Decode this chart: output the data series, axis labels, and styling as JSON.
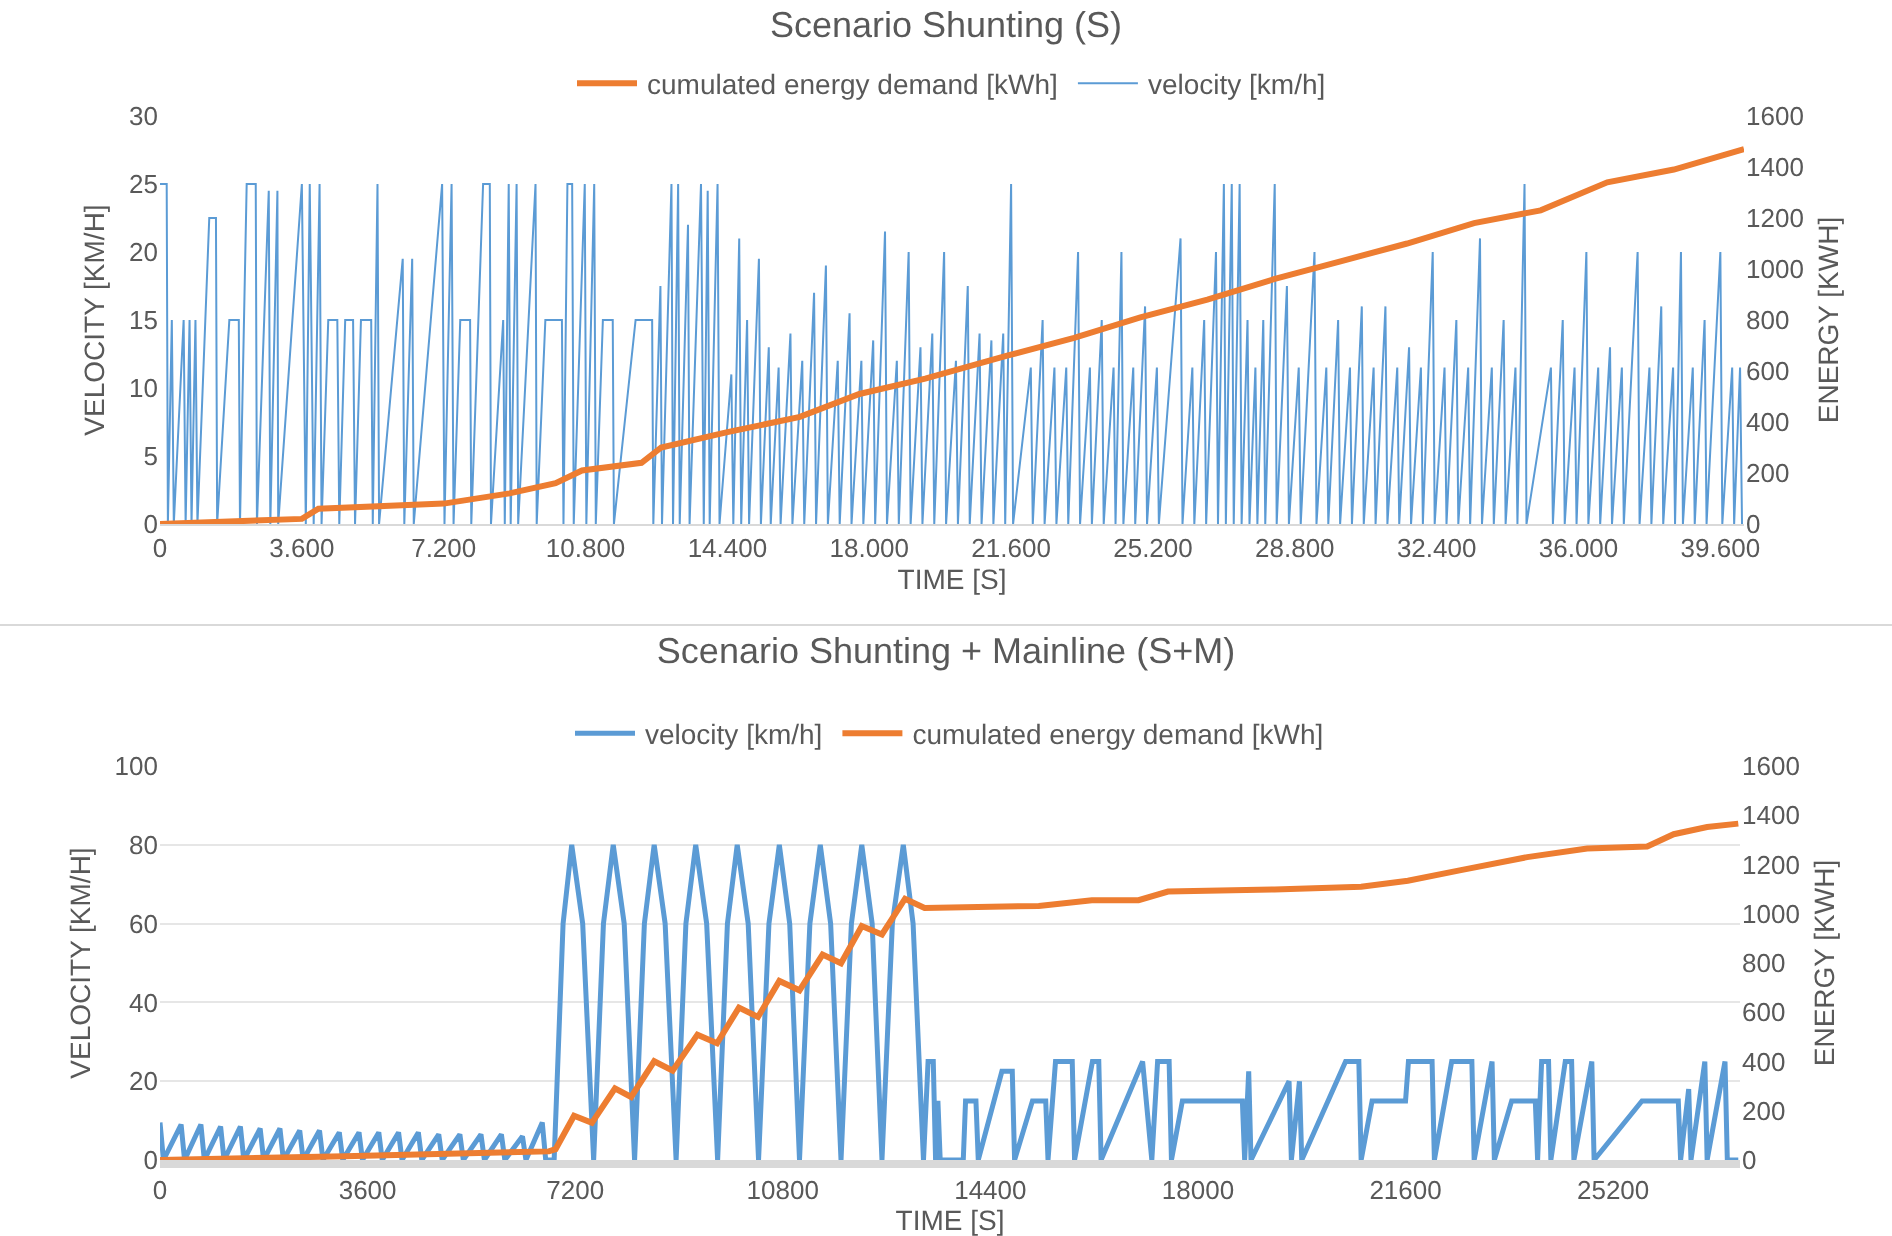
{
  "chart_data": [
    {
      "type": "line",
      "title": "Scenario Shunting (S)",
      "xlabel": "TIME [S]",
      "ylabel": "VELOCITY [KM/H]",
      "y2label": "ENERGY [KWH]",
      "legend": "top",
      "xlim": [
        0,
        40200
      ],
      "xticks": [
        0,
        {
          "value": 3600,
          "label": "3.600"
        },
        {
          "value": 7200,
          "label": "7.200"
        },
        {
          "value": 10800,
          "label": "10.800"
        },
        {
          "value": 14400,
          "label": "14.400"
        },
        {
          "value": 18000,
          "label": "18.000"
        },
        {
          "value": 21600,
          "label": "21.600"
        },
        {
          "value": 25200,
          "label": "25.200"
        },
        {
          "value": 28800,
          "label": "28.800"
        },
        {
          "value": 32400,
          "label": "32.400"
        },
        {
          "value": 36000,
          "label": "36.000"
        },
        {
          "value": 39600,
          "label": "39.600"
        }
      ],
      "ylim": [
        0,
        30
      ],
      "yticks": [
        0,
        5,
        10,
        15,
        20,
        25,
        30
      ],
      "y2lim": [
        0,
        1600
      ],
      "y2ticks": [
        0,
        200,
        400,
        600,
        800,
        1000,
        1200,
        1400,
        1600
      ],
      "series": [
        {
          "name": "cumulated energy demand [kWh]",
          "color": "#ed7d31",
          "axis": "y2",
          "x": [
            0,
            3600,
            4020,
            7200,
            8870,
            10040,
            10710,
            12220,
            12720,
            14400,
            16240,
            17750,
            19420,
            21500,
            23200,
            24880,
            26580,
            28270,
            29960,
            31650,
            33350,
            35040,
            36730,
            38420,
            40200
          ],
          "values": [
            0,
            20,
            60,
            80,
            120,
            160,
            210,
            240,
            300,
            360,
            420,
            510,
            570,
            660,
            730,
            810,
            880,
            960,
            1030,
            1100,
            1180,
            1230,
            1340,
            1390,
            1470
          ]
        },
        {
          "name": "velocity [km/h]",
          "color": "#5b9bd5",
          "x": [
            0,
            170,
            200,
            300,
            350,
            600,
            650,
            750,
            800,
            900,
            950,
            1250,
            1420,
            1450,
            1760,
            2000,
            2030,
            2200,
            2430,
            2460,
            2760,
            2800,
            2980,
            3000,
            3600,
            3700,
            3800,
            3900,
            4050,
            4100,
            4270,
            4500,
            4550,
            4700,
            4900,
            4950,
            5100,
            5360,
            5400,
            5520,
            5560,
            6160,
            6200,
            6400,
            6440,
            7160,
            7220,
            7400,
            7450,
            7620,
            7870,
            7900,
            8200,
            8370,
            8400,
            8710,
            8750,
            8850,
            8900,
            9050,
            9090,
            9530,
            9560,
            9780,
            10200,
            10240,
            10340,
            10460,
            10500,
            10780,
            10820,
            11020,
            11060,
            11240,
            11490,
            11520,
            12070,
            12490,
            12520,
            12700,
            12740,
            12980,
            13020,
            13150,
            13190,
            13400,
            13440,
            13730,
            13800,
            13900,
            13950,
            14150,
            14200,
            14500,
            14550,
            14700,
            14750,
            14900,
            14950,
            15200,
            15250,
            15450,
            15500,
            15700,
            15750,
            16000,
            16050,
            16300,
            16350,
            16600,
            16650,
            16900,
            16950,
            17200,
            17250,
            17500,
            17550,
            17800,
            17850,
            18100,
            18150,
            18400,
            18450,
            18700,
            18750,
            19000,
            19050,
            19300,
            19350,
            19600,
            19650,
            19900,
            19950,
            20200,
            20250,
            20500,
            20550,
            20800,
            20850,
            21100,
            21150,
            21400,
            21450,
            21600,
            21650,
            22100,
            22150,
            22400,
            22450,
            22700,
            22750,
            23000,
            23050,
            23300,
            23350,
            23600,
            23650,
            23900,
            23950,
            24200,
            24250,
            24400,
            24450,
            24700,
            24750,
            25000,
            25050,
            25300,
            25350,
            25900,
            25950,
            26200,
            26250,
            26500,
            26550,
            26800,
            26850,
            27000,
            27050,
            27200,
            27250,
            27400,
            27450,
            27600,
            27650,
            27800,
            27850,
            28000,
            28050,
            28290,
            28340,
            28600,
            28650,
            28900,
            28950,
            29300,
            29350,
            29600,
            29650,
            29900,
            29950,
            30200,
            30250,
            30500,
            30550,
            30800,
            30850,
            31100,
            31150,
            31400,
            31450,
            31700,
            31750,
            32000,
            32050,
            32300,
            32350,
            32600,
            32650,
            32900,
            32950,
            33200,
            33250,
            33500,
            33550,
            33800,
            33850,
            34100,
            34150,
            34400,
            34450,
            34630,
            34680,
            35300,
            35350,
            35600,
            35650,
            35900,
            35950,
            36200,
            36250,
            36500,
            36550,
            36800,
            36850,
            37100,
            37150,
            37500,
            37550,
            37800,
            37850,
            38100,
            38150,
            38400,
            38450,
            38600,
            38650,
            38900,
            38950,
            39200,
            39250,
            39600,
            39650,
            39900,
            39950,
            40100,
            40150
          ],
          "values": [
            25,
            25,
            0,
            15,
            0,
            15,
            0,
            15,
            0,
            15,
            0,
            22.5,
            22.5,
            0,
            15,
            15,
            0,
            25,
            25,
            0,
            24.5,
            0,
            24.5,
            0,
            25,
            0,
            25,
            0,
            25,
            0,
            15,
            15,
            0,
            15,
            15,
            0,
            15,
            15,
            0,
            25,
            0,
            19.5,
            0,
            19.5,
            0,
            25,
            0,
            25,
            0,
            15,
            15,
            0,
            25,
            25,
            0,
            15,
            0,
            25,
            0,
            25,
            0,
            25,
            0,
            15,
            15,
            0,
            25,
            25,
            0,
            25,
            0,
            25,
            0,
            15,
            15,
            0,
            15,
            15,
            0,
            17.5,
            0,
            25,
            0,
            25,
            0,
            22,
            0,
            25,
            0,
            24.5,
            0,
            25,
            0,
            11,
            0,
            21,
            0,
            15,
            0,
            19.5,
            0,
            13,
            0,
            11.5,
            0,
            14,
            0,
            12,
            0,
            17,
            0,
            19,
            0,
            12,
            0,
            15.5,
            0,
            12,
            0,
            13.5,
            0,
            21.5,
            0,
            12,
            0,
            20,
            0,
            13,
            0,
            14,
            0,
            20,
            0,
            12,
            0,
            17.5,
            0,
            14,
            0,
            13.5,
            0,
            14,
            0,
            25,
            0,
            11.5,
            0,
            15,
            0,
            11.5,
            0,
            11.5,
            0,
            20,
            0,
            11.5,
            0,
            15,
            0,
            11.5,
            0,
            20,
            0,
            11.5,
            0,
            16,
            0,
            11.5,
            0,
            21,
            0,
            11.5,
            0,
            15,
            0,
            20,
            0,
            25,
            0,
            25,
            0,
            25,
            0,
            15,
            0,
            11.5,
            0,
            15,
            0,
            25,
            0,
            17.5,
            0,
            11.5,
            0,
            20,
            0,
            11.5,
            0,
            15,
            0,
            11.5,
            0,
            16,
            0,
            11.5,
            0,
            16,
            0,
            11.5,
            0,
            13,
            0,
            11.5,
            0,
            20,
            0,
            11.5,
            0,
            15,
            0,
            11.5,
            0,
            21,
            0,
            11.5,
            0,
            15,
            0,
            11.5,
            0,
            25,
            0,
            11.5,
            0,
            15,
            0,
            11.5,
            0,
            20,
            0,
            11.5,
            0,
            13,
            0,
            11.5,
            0,
            20,
            0,
            11.5,
            0,
            16,
            0,
            11.5,
            0,
            20,
            0,
            11.5,
            0,
            15,
            0,
            20,
            0,
            11.5,
            0,
            11.5,
            0
          ]
        }
      ]
    },
    {
      "type": "line",
      "title": "Scenario Shunting + Mainline (S+M)",
      "xlabel": "TIME [S]",
      "ylabel": "VELOCITY [KM/H]",
      "y2label": "ENERGY [KWH]",
      "legend": "top",
      "grid": "y",
      "xlim": [
        0,
        27400
      ],
      "xticks": [
        0,
        3600,
        7200,
        10800,
        14400,
        18000,
        21600,
        25200
      ],
      "ylim": [
        0,
        100
      ],
      "yticks": [
        0,
        20,
        40,
        60,
        80,
        100
      ],
      "y2lim": [
        0,
        1600
      ],
      "y2ticks": [
        0,
        200,
        400,
        600,
        800,
        1000,
        1200,
        1400,
        1600
      ],
      "series": [
        {
          "name": "velocity [km/h]",
          "color": "#5b9bd5",
          "x": [
            0,
            60,
            366,
            426,
            709,
            769,
            1051,
            1111,
            1394,
            1454,
            1737,
            1797,
            2080,
            2140,
            2423,
            2483,
            2766,
            2826,
            3109,
            3169,
            3451,
            3511,
            3794,
            3854,
            4137,
            4197,
            4480,
            4540,
            4834,
            4894,
            5200,
            5260,
            5566,
            5626,
            5920,
            5980,
            6286,
            6346,
            6629,
            6689,
            6835,
            6990,
            7140,
            7330,
            7520,
            7690,
            7860,
            8050,
            8230,
            8400,
            8570,
            8760,
            8950,
            9120,
            9290,
            9480,
            9670,
            9840,
            10010,
            10200,
            10380,
            10560,
            10740,
            10920,
            11090,
            11270,
            11450,
            11630,
            11810,
            11990,
            12170,
            12350,
            12520,
            12700,
            12890,
            13060,
            13240,
            13320,
            13410,
            13450,
            13490,
            13530,
            13930,
            13970,
            14150,
            14190,
            14600,
            14780,
            14820,
            15130,
            15360,
            15400,
            15530,
            15820,
            15860,
            16170,
            16280,
            16320,
            17040,
            17200,
            17300,
            17500,
            17540,
            17730,
            18770,
            18810,
            18880,
            18920,
            19580,
            19620,
            19760,
            19800,
            20560,
            20790,
            20830,
            21020,
            21600,
            21650,
            22060,
            22100,
            22400,
            22750,
            22790,
            23100,
            23140,
            23440,
            23850,
            23890,
            23960,
            24080,
            24120,
            24370,
            24480,
            24520,
            24830,
            24870,
            25700,
            26330,
            26370,
            26510,
            26550,
            26790,
            26830,
            27140,
            27180,
            27370
          ],
          "values": [
            9.5,
            0,
            9,
            0,
            9,
            0,
            8.5,
            0,
            8.5,
            0,
            8,
            0,
            8,
            0,
            7.5,
            0,
            7.5,
            0,
            7,
            0,
            7,
            0,
            7,
            0,
            7,
            0,
            7,
            0,
            6.5,
            0,
            6.5,
            0,
            6.5,
            0,
            6.5,
            0,
            6,
            0,
            9.5,
            0,
            0,
            60,
            80,
            60,
            0,
            60,
            80,
            60,
            0,
            60,
            80,
            60,
            0,
            60,
            80,
            60,
            0,
            60,
            80,
            60,
            0,
            60,
            80,
            60,
            0,
            60,
            80,
            60,
            0,
            60,
            80,
            60,
            0,
            60,
            80,
            60,
            0,
            25,
            25,
            0,
            15,
            0,
            0,
            15,
            15,
            0,
            22.5,
            22.5,
            0,
            15,
            15,
            0,
            25,
            25,
            0,
            25,
            25,
            0,
            25,
            0,
            25,
            25,
            0,
            15,
            15,
            0,
            22.5,
            0,
            20,
            0,
            20,
            0,
            25,
            25,
            0,
            15,
            15,
            25,
            25,
            0,
            25,
            25,
            0,
            25,
            0,
            15,
            15,
            0,
            25,
            25,
            0,
            25,
            25,
            0,
            25,
            0,
            15,
            15,
            0,
            18,
            0,
            25,
            0,
            25,
            0,
            0
          ]
        },
        {
          "name": "cumulated energy demand [kWh]",
          "color": "#ed7d31",
          "axis": "y2",
          "x": [
            0,
            3200,
            6744,
            6860,
            7180,
            7490,
            7890,
            8170,
            8570,
            8890,
            9320,
            9660,
            10040,
            10370,
            10740,
            11090,
            11490,
            11810,
            12170,
            12520,
            12920,
            13260,
            15240,
            16160,
            16970,
            17480,
            19330,
            20830,
            21640,
            22560,
            23710,
            24750,
            25790,
            26250,
            26830,
            27370
          ],
          "values": [
            0,
            15,
            35,
            44,
            180,
            151,
            291,
            256,
            401,
            363,
            509,
            474,
            619,
            581,
            727,
            689,
            834,
            799,
            950,
            916,
            1061,
            1023,
            1032,
            1055,
            1055,
            1090,
            1099,
            1110,
            1134,
            1177,
            1230,
            1265,
            1273,
            1323,
            1352,
            1366
          ]
        }
      ]
    }
  ]
}
